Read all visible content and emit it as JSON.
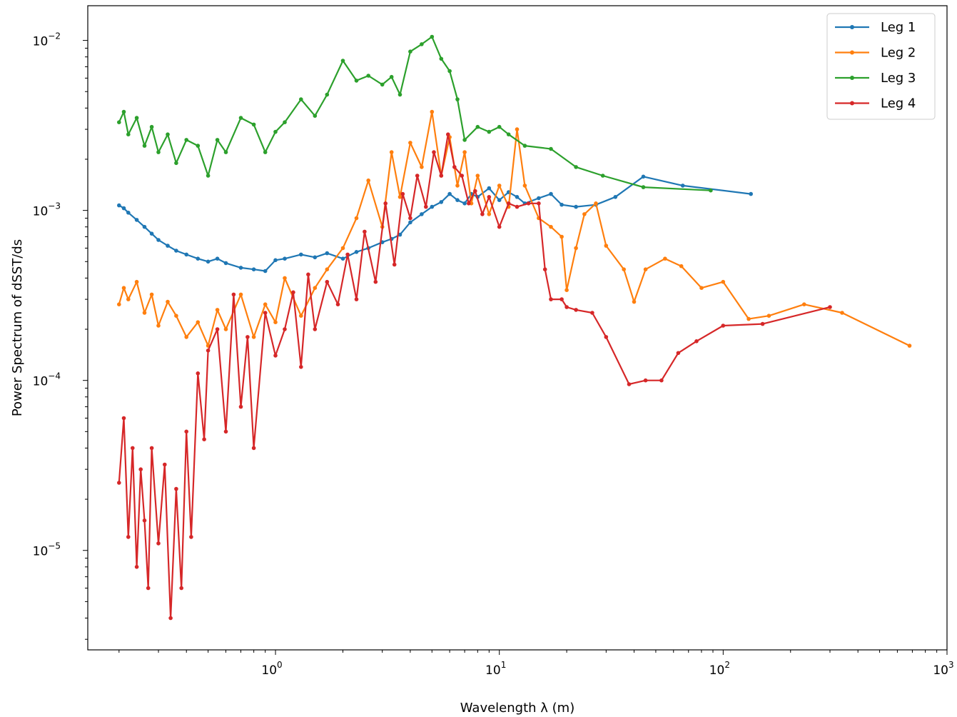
{
  "chart_data": {
    "type": "line",
    "title": "",
    "xlabel": "Wavelength λ (m)",
    "ylabel": "Power Spectrum of dSST/ds",
    "xscale": "log",
    "yscale": "log",
    "xlim": [
      0.145,
      1000
    ],
    "ylim": [
      2.6e-06,
      0.016
    ],
    "x_ticks": [
      {
        "value": 1,
        "base": "10",
        "exp": "0"
      },
      {
        "value": 10,
        "base": "10",
        "exp": "1"
      },
      {
        "value": 100,
        "base": "10",
        "exp": "2"
      },
      {
        "value": 1000,
        "base": "10",
        "exp": "3"
      }
    ],
    "y_ticks": [
      {
        "value": 1e-05,
        "base": "10",
        "exp": "−5"
      },
      {
        "value": 0.0001,
        "base": "10",
        "exp": "−4"
      },
      {
        "value": 0.001,
        "base": "10",
        "exp": "−3"
      },
      {
        "value": 0.01,
        "base": "10",
        "exp": "−2"
      }
    ],
    "grid": false,
    "legend_position": "top-right",
    "series": [
      {
        "name": "Leg 1",
        "color": "#1f77b4",
        "x": [
          0.2,
          0.21,
          0.22,
          0.24,
          0.26,
          0.28,
          0.3,
          0.33,
          0.36,
          0.4,
          0.45,
          0.5,
          0.55,
          0.6,
          0.7,
          0.8,
          0.9,
          1.0,
          1.1,
          1.3,
          1.5,
          1.7,
          2.0,
          2.3,
          2.6,
          3.0,
          3.3,
          3.6,
          4.0,
          4.5,
          5.0,
          5.5,
          6.0,
          6.5,
          7.0,
          7.5,
          8.0,
          9.0,
          10.0,
          11.0,
          12.0,
          13.0,
          15.0,
          17.0,
          19.0,
          22.0,
          27.0,
          33.0,
          44.0,
          66.0,
          133.0
        ],
        "y": [
          0.00107,
          0.00103,
          0.00097,
          0.00088,
          0.0008,
          0.00073,
          0.00067,
          0.00062,
          0.00058,
          0.00055,
          0.00052,
          0.0005,
          0.00052,
          0.00049,
          0.00046,
          0.00045,
          0.00044,
          0.00051,
          0.00052,
          0.00055,
          0.00053,
          0.00056,
          0.00052,
          0.00057,
          0.0006,
          0.00065,
          0.00068,
          0.00072,
          0.00085,
          0.00095,
          0.00105,
          0.00112,
          0.00125,
          0.00115,
          0.0011,
          0.00125,
          0.0012,
          0.00135,
          0.00115,
          0.00128,
          0.0012,
          0.0011,
          0.00118,
          0.00125,
          0.00108,
          0.00105,
          0.00108,
          0.0012,
          0.00158,
          0.0014,
          0.00125
        ]
      },
      {
        "name": "Leg 2",
        "color": "#ff7f0e",
        "x": [
          0.2,
          0.21,
          0.22,
          0.24,
          0.26,
          0.28,
          0.3,
          0.33,
          0.36,
          0.4,
          0.45,
          0.5,
          0.55,
          0.6,
          0.7,
          0.8,
          0.9,
          1.0,
          1.1,
          1.3,
          1.5,
          1.7,
          2.0,
          2.3,
          2.6,
          3.0,
          3.3,
          3.6,
          4.0,
          4.5,
          5.0,
          5.5,
          6.0,
          6.5,
          7.0,
          7.5,
          8.0,
          9.0,
          10.0,
          11.0,
          12.0,
          13.0,
          15.0,
          17.0,
          19.0,
          20.0,
          22.0,
          24.0,
          27.0,
          30.0,
          36.0,
          40.0,
          45.0,
          55.0,
          65.0,
          80.0,
          100.0,
          130.0,
          160.0,
          230.0,
          340.0,
          680.0
        ],
        "y": [
          0.00028,
          0.00035,
          0.0003,
          0.00038,
          0.00025,
          0.00032,
          0.00021,
          0.00029,
          0.00024,
          0.00018,
          0.00022,
          0.00016,
          0.00026,
          0.0002,
          0.00032,
          0.00018,
          0.00028,
          0.00022,
          0.0004,
          0.00024,
          0.00035,
          0.00045,
          0.0006,
          0.0009,
          0.0015,
          0.0008,
          0.0022,
          0.0012,
          0.0025,
          0.0018,
          0.0038,
          0.0016,
          0.0027,
          0.0014,
          0.0022,
          0.0011,
          0.0016,
          0.00095,
          0.0014,
          0.00105,
          0.003,
          0.0014,
          0.0009,
          0.0008,
          0.0007,
          0.00034,
          0.0006,
          0.00095,
          0.0011,
          0.00062,
          0.00045,
          0.00029,
          0.00045,
          0.00052,
          0.00047,
          0.00035,
          0.00038,
          0.00023,
          0.00024,
          0.00028,
          0.00025,
          0.00016
        ]
      },
      {
        "name": "Leg 3",
        "color": "#2ca02c",
        "x": [
          0.2,
          0.21,
          0.22,
          0.24,
          0.26,
          0.28,
          0.3,
          0.33,
          0.36,
          0.4,
          0.45,
          0.5,
          0.55,
          0.6,
          0.7,
          0.8,
          0.9,
          1.0,
          1.1,
          1.3,
          1.5,
          1.7,
          2.0,
          2.3,
          2.6,
          3.0,
          3.3,
          3.6,
          4.0,
          4.5,
          5.0,
          5.5,
          6.0,
          6.5,
          7.0,
          8.0,
          9.0,
          10.0,
          11.0,
          13.0,
          17.0,
          22.0,
          29.0,
          44.0,
          88.0
        ],
        "y": [
          0.0033,
          0.0038,
          0.0028,
          0.0035,
          0.0024,
          0.0031,
          0.0022,
          0.0028,
          0.0019,
          0.0026,
          0.0024,
          0.0016,
          0.0026,
          0.0022,
          0.0035,
          0.0032,
          0.0022,
          0.0029,
          0.0033,
          0.0045,
          0.0036,
          0.0048,
          0.0076,
          0.0058,
          0.0062,
          0.0055,
          0.0061,
          0.0048,
          0.0086,
          0.0095,
          0.0105,
          0.0078,
          0.0066,
          0.0045,
          0.0026,
          0.0031,
          0.0029,
          0.0031,
          0.0028,
          0.0024,
          0.0023,
          0.0018,
          0.0016,
          0.00137,
          0.00131
        ]
      },
      {
        "name": "Leg 4",
        "color": "#d62728",
        "x": [
          0.2,
          0.21,
          0.22,
          0.23,
          0.24,
          0.25,
          0.26,
          0.27,
          0.28,
          0.3,
          0.32,
          0.34,
          0.36,
          0.38,
          0.4,
          0.42,
          0.45,
          0.48,
          0.5,
          0.55,
          0.6,
          0.65,
          0.7,
          0.75,
          0.8,
          0.9,
          1.0,
          1.1,
          1.2,
          1.3,
          1.4,
          1.5,
          1.7,
          1.9,
          2.1,
          2.3,
          2.5,
          2.8,
          3.1,
          3.4,
          3.7,
          4.0,
          4.3,
          4.7,
          5.1,
          5.5,
          5.9,
          6.3,
          6.8,
          7.3,
          7.8,
          8.4,
          9.0,
          10.0,
          11.0,
          12.0,
          13.5,
          15.0,
          16.0,
          17.0,
          19.0,
          20.0,
          22.0,
          26.0,
          30.0,
          38.0,
          45.0,
          53.0,
          63.0,
          76.0,
          100.0,
          150.0,
          300.0
        ],
        "y": [
          2.5e-05,
          6e-05,
          1.2e-05,
          4e-05,
          8e-06,
          3e-05,
          1.5e-05,
          6e-06,
          4e-05,
          1.1e-05,
          3.2e-05,
          4e-06,
          2.3e-05,
          6e-06,
          5e-05,
          1.2e-05,
          0.00011,
          4.5e-05,
          0.00015,
          0.0002,
          5e-05,
          0.00032,
          7e-05,
          0.00018,
          4e-05,
          0.00025,
          0.00014,
          0.0002,
          0.00033,
          0.00012,
          0.00042,
          0.0002,
          0.00038,
          0.00028,
          0.00055,
          0.0003,
          0.00075,
          0.00038,
          0.0011,
          0.00048,
          0.00125,
          0.0009,
          0.0016,
          0.00105,
          0.0022,
          0.0016,
          0.0028,
          0.0018,
          0.0016,
          0.0011,
          0.0013,
          0.00095,
          0.0012,
          0.0008,
          0.0011,
          0.00105,
          0.0011,
          0.0011,
          0.00045,
          0.0003,
          0.0003,
          0.00027,
          0.00026,
          0.00025,
          0.00018,
          9.5e-05,
          0.0001,
          0.0001,
          0.000145,
          0.00017,
          0.00021,
          0.000215,
          0.00027
        ]
      }
    ]
  }
}
